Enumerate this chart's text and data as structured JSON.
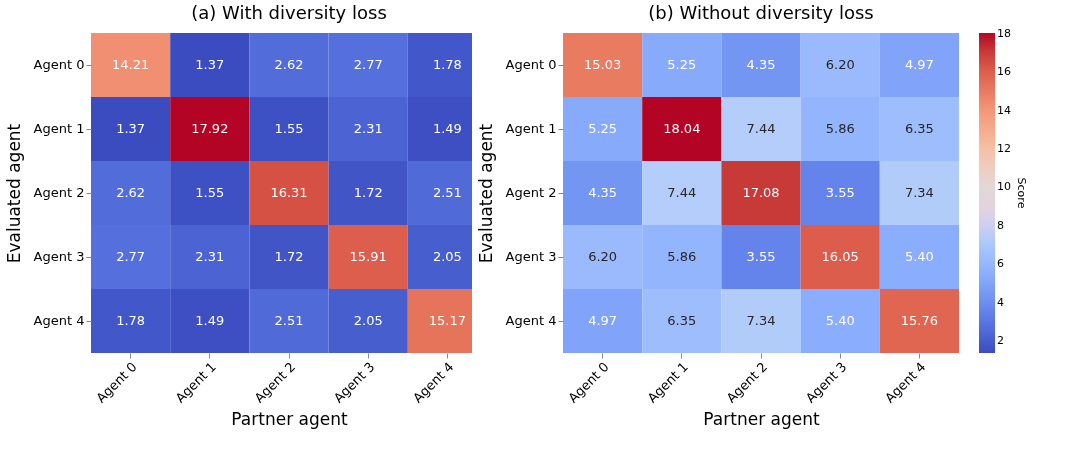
{
  "chart_data": [
    {
      "type": "heatmap",
      "title": "(a) With diversity loss",
      "xlabel": "Partner agent",
      "ylabel": "Evaluated agent",
      "categories": [
        "Agent 0",
        "Agent 1",
        "Agent 2",
        "Agent 3",
        "Agent 4"
      ],
      "y_categories": [
        "Agent 0",
        "Agent 1",
        "Agent 2",
        "Agent 3",
        "Agent 4"
      ],
      "data_labels": true,
      "cells": [
        [
          14.21,
          1.37,
          2.62,
          2.77,
          1.78
        ],
        [
          1.37,
          17.92,
          1.55,
          2.31,
          1.49
        ],
        [
          2.62,
          1.55,
          16.31,
          1.72,
          2.51
        ],
        [
          2.77,
          2.31,
          1.72,
          15.91,
          2.05
        ],
        [
          1.78,
          1.49,
          2.51,
          2.05,
          15.17
        ]
      ]
    },
    {
      "type": "heatmap",
      "title": "(b) Without diversity loss",
      "xlabel": "Partner agent",
      "ylabel": "Evaluated agent",
      "categories": [
        "Agent 0",
        "Agent 1",
        "Agent 2",
        "Agent 3",
        "Agent 4"
      ],
      "y_categories": [
        "Agent 0",
        "Agent 1",
        "Agent 2",
        "Agent 3",
        "Agent 4"
      ],
      "data_labels": true,
      "clabel": "Score",
      "clim": [
        1.37,
        18.04
      ],
      "cticks": [
        2,
        4,
        6,
        8,
        10,
        12,
        14,
        16,
        18
      ],
      "cells": [
        [
          15.03,
          5.25,
          4.35,
          6.2,
          4.97
        ],
        [
          5.25,
          18.04,
          7.44,
          5.86,
          6.35
        ],
        [
          4.35,
          7.44,
          17.08,
          3.55,
          7.34
        ],
        [
          6.2,
          5.86,
          3.55,
          16.05,
          5.4
        ],
        [
          4.97,
          6.35,
          7.34,
          5.4,
          15.76
        ]
      ],
      "cell_labels": [
        [
          "15.03",
          "5.25",
          "4.35",
          "6.20",
          "4.97"
        ],
        [
          "5.25",
          "18.04",
          "7.44",
          "5.86",
          "6.35"
        ],
        [
          "4.35",
          "7.44",
          "17.08",
          "3.55",
          "7.34"
        ],
        [
          "6.20",
          "5.86",
          "3.55",
          "16.05",
          "5.40"
        ],
        [
          "4.97",
          "6.35",
          "7.34",
          "5.40",
          "15.76"
        ]
      ]
    }
  ]
}
